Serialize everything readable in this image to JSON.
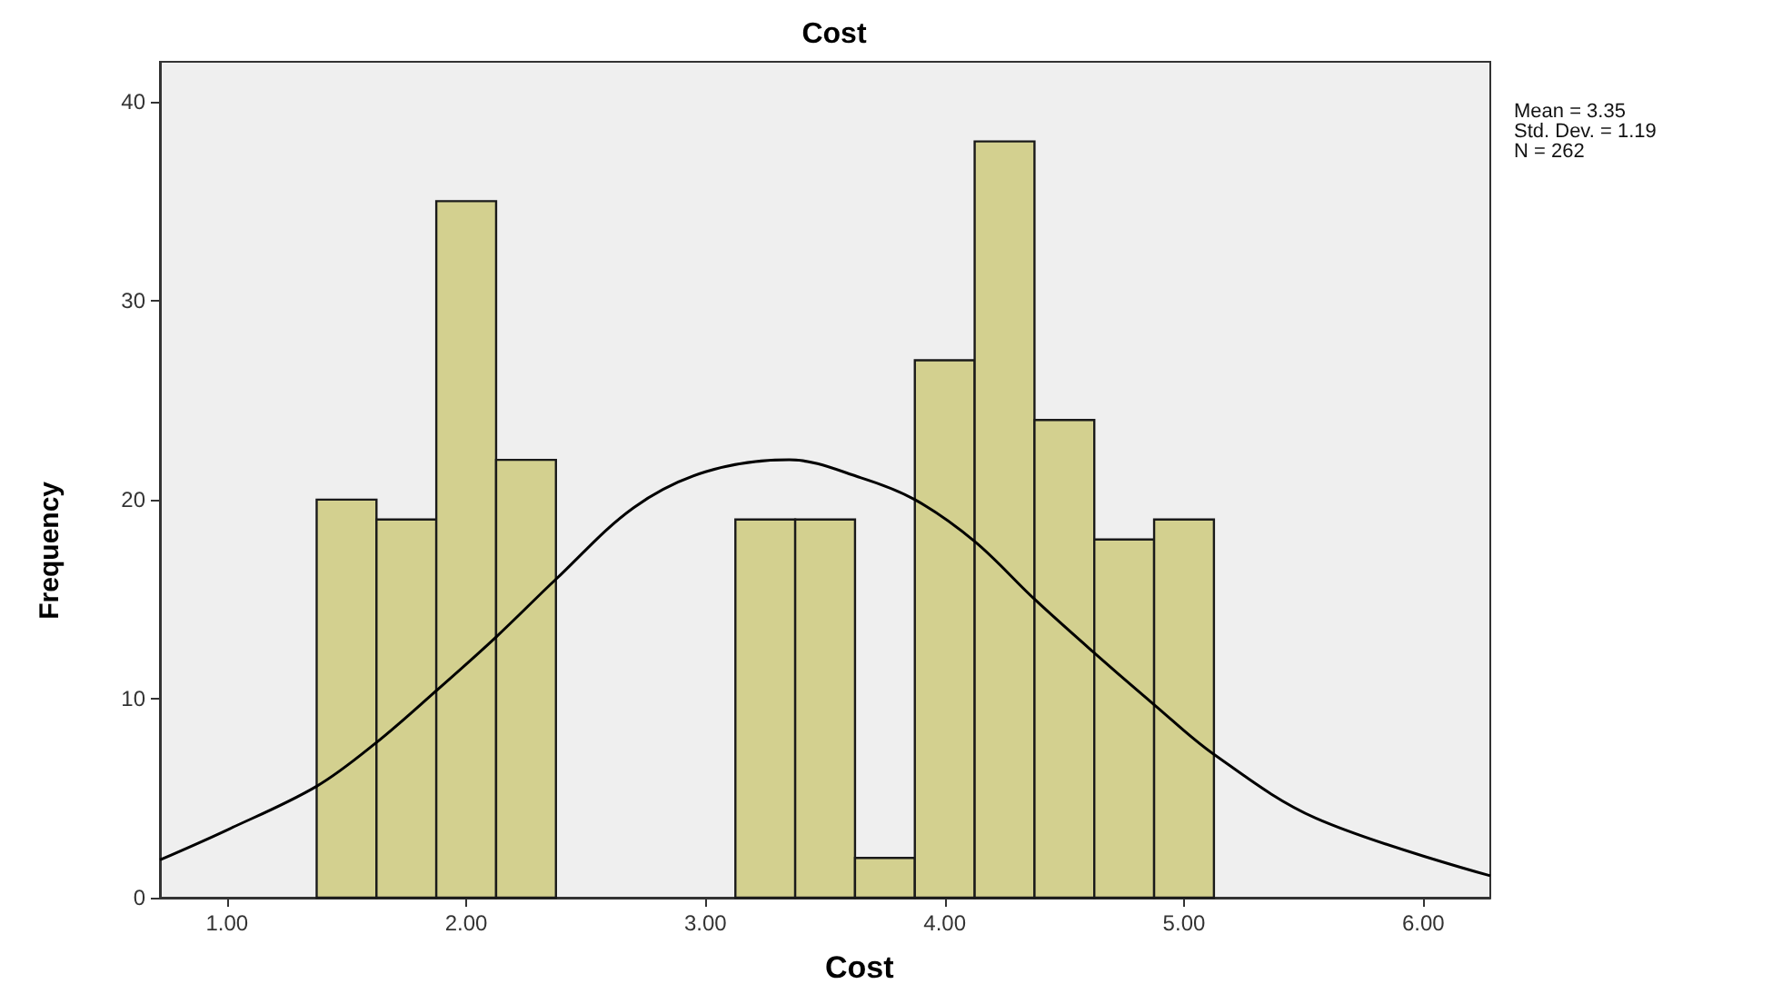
{
  "chart_data": {
    "type": "histogram",
    "title": "Cost",
    "xlabel": "Cost",
    "ylabel": "Frequency",
    "bins": [
      1.375,
      1.625,
      1.875,
      2.125,
      2.375,
      2.625,
      2.875,
      3.125,
      3.375,
      3.625,
      3.875,
      4.125,
      4.375,
      4.625,
      4.875,
      5.125
    ],
    "values": [
      20,
      19,
      35,
      22,
      0,
      0,
      0,
      19,
      19,
      2,
      27,
      38,
      24,
      18,
      19
    ],
    "color": "#d3d08f",
    "series": [
      {
        "type": "line",
        "color": "#000000",
        "x": [
          0.72,
          1.0,
          1.375,
          1.625,
          1.875,
          2.125,
          2.375,
          2.7,
          3.0,
          3.35,
          3.65,
          3.875,
          4.125,
          4.375,
          4.625,
          4.875,
          5.125,
          5.55,
          6.28
        ],
        "values": [
          1.9,
          3.4,
          5.6,
          7.8,
          10.4,
          13.1,
          16.0,
          19.6,
          21.4,
          22.0,
          21.1,
          20.0,
          17.9,
          15.0,
          12.3,
          9.7,
          7.2,
          4.0,
          1.1
        ]
      }
    ],
    "xlim": [
      0.72,
      6.28
    ],
    "xticks": [
      {
        "value": 1,
        "label": "1.00"
      },
      {
        "value": 2,
        "label": "2.00"
      },
      {
        "value": 3,
        "label": "3.00"
      },
      {
        "value": 4,
        "label": "4.00"
      },
      {
        "value": 5,
        "label": "5.00"
      },
      {
        "value": 6,
        "label": "6.00"
      }
    ],
    "ylim": [
      0,
      42
    ],
    "yticks": [
      0,
      10,
      20,
      30,
      40
    ],
    "grid": false,
    "marker": "none",
    "annotations": [
      "Mean = 3.35",
      "Std. Dev. = 1.19",
      "N = 262"
    ]
  }
}
